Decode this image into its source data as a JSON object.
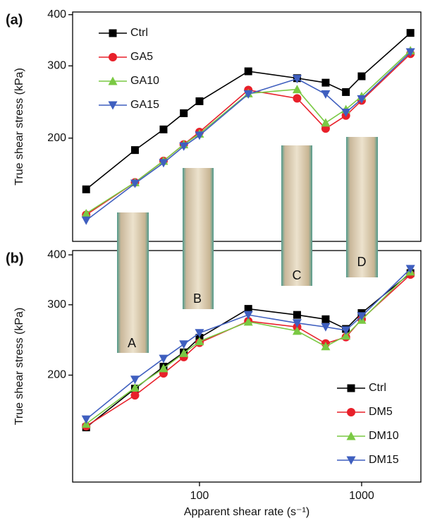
{
  "chart_data": [
    {
      "type": "line",
      "panel_label": "(a)",
      "ylabel": "True shear stress (kPa)",
      "xscale": "log",
      "yscale": "log",
      "xlim": [
        16.5,
        2320
      ],
      "ylim": [
        112,
        406
      ],
      "yticks": [
        200,
        300,
        400
      ],
      "legend": "upper left",
      "x": [
        20,
        40,
        60,
        80,
        100,
        200,
        400,
        600,
        800,
        1000,
        2000
      ],
      "series": [
        {
          "name": "Ctrl",
          "color": "#000000",
          "marker": "square",
          "values": [
            150,
            187,
            210,
            230,
            246,
            291,
            280,
            273,
            259,
            283,
            361
          ]
        },
        {
          "name": "GA5",
          "color": "#e8202a",
          "marker": "circle",
          "values": [
            130,
            156,
            176,
            193,
            207,
            262,
            250,
            211,
            227,
            247,
            321
          ]
        },
        {
          "name": "GA10",
          "color": "#7ac943",
          "marker": "triangle-up",
          "values": [
            131,
            156,
            176,
            193,
            205,
            257,
            263,
            218,
            235,
            253,
            327
          ]
        },
        {
          "name": "GA15",
          "color": "#3f5fbf",
          "marker": "triangle-down",
          "values": [
            126,
            155,
            174,
            191,
            203,
            256,
            279,
            256,
            231,
            249,
            324
          ]
        }
      ]
    },
    {
      "type": "line",
      "panel_label": "(b)",
      "ylabel": "True shear stress (kPa)",
      "xlabel": "Apparent shear rate (s⁻¹)",
      "xscale": "log",
      "yscale": "log",
      "xlim": [
        16.5,
        2320
      ],
      "ylim": [
        108,
        410
      ],
      "xticks": [
        100,
        1000
      ],
      "yticks": [
        200,
        300,
        400
      ],
      "legend": "lower right",
      "x": [
        20,
        40,
        60,
        80,
        100,
        200,
        400,
        600,
        800,
        1000,
        2000
      ],
      "series": [
        {
          "name": "Ctrl",
          "color": "#000000",
          "marker": "square",
          "values": [
            148,
            185,
            210,
            228,
            248,
            293,
            283,
            276,
            261,
            286,
            360
          ]
        },
        {
          "name": "DM5",
          "color": "#e8202a",
          "marker": "circle",
          "values": [
            149,
            178,
            202,
            222,
            241,
            273,
            264,
            240,
            249,
            276,
            357
          ]
        },
        {
          "name": "DM10",
          "color": "#7ac943",
          "marker": "triangle-up",
          "values": [
            151,
            186,
            208,
            227,
            243,
            272,
            258,
            236,
            251,
            275,
            363
          ]
        },
        {
          "name": "DM15",
          "color": "#3f5fbf",
          "marker": "triangle-down",
          "values": [
            155,
            195,
            220,
            239,
            255,
            283,
            270,
            264,
            259,
            281,
            369
          ]
        }
      ]
    }
  ],
  "inset_labels": [
    "A",
    "B",
    "C",
    "D"
  ]
}
